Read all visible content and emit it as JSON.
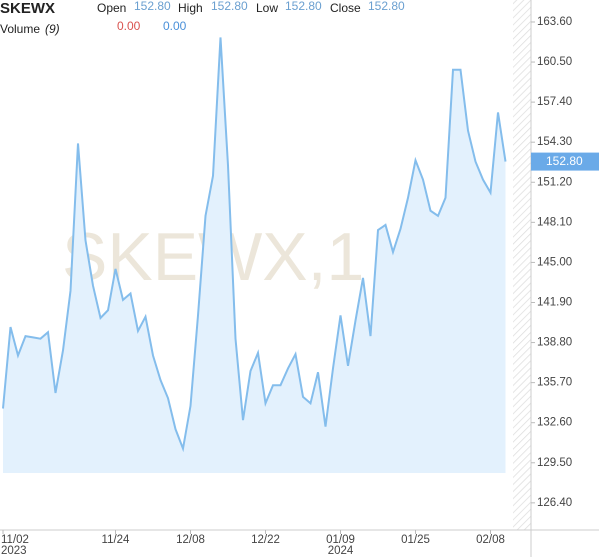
{
  "chart_data": {
    "type": "area",
    "header": {
      "symbol": "SKEWX",
      "open_label": "Open",
      "open": "152.80",
      "high_label": "High",
      "high": "152.80",
      "low_label": "Low",
      "low": "152.80",
      "close_label": "Close",
      "close": "152.80",
      "volume_label": "Volume",
      "volume_period": "(9)",
      "volume_values": [
        "0.00",
        "0.00"
      ]
    },
    "watermark": "SKEWX,1",
    "categories": [
      "11/02",
      null,
      null,
      null,
      null,
      null,
      null,
      null,
      null,
      null,
      null,
      null,
      null,
      null,
      null,
      "11/24",
      null,
      null,
      null,
      null,
      null,
      null,
      null,
      null,
      null,
      "12/08",
      null,
      null,
      null,
      null,
      null,
      null,
      null,
      null,
      null,
      "12/22",
      null,
      null,
      null,
      null,
      null,
      null,
      null,
      null,
      null,
      "01/09",
      null,
      null,
      null,
      null,
      null,
      null,
      null,
      null,
      null,
      "01/25",
      null,
      null,
      null,
      null,
      null,
      null,
      null,
      null,
      null,
      "02/08",
      null,
      null
    ],
    "year_labels": [
      {
        "category": "11/02",
        "label": "2023"
      },
      {
        "category": "01/09",
        "label": "2024"
      }
    ],
    "values": [
      133.7,
      140.0,
      137.8,
      139.3,
      139.2,
      139.1,
      139.6,
      134.9,
      138.2,
      142.8,
      154.2,
      146.7,
      143.2,
      140.7,
      141.3,
      144.5,
      142.1,
      142.6,
      139.7,
      140.8,
      137.8,
      135.9,
      134.5,
      132.1,
      130.6,
      133.9,
      140.9,
      148.6,
      151.7,
      162.4,
      152.5,
      139.1,
      132.8,
      136.6,
      138.0,
      134.1,
      135.5,
      135.5,
      136.8,
      137.9,
      134.6,
      134.1,
      136.5,
      132.3,
      136.8,
      140.9,
      137.0,
      140.5,
      143.8,
      139.3,
      147.5,
      147.9,
      145.8,
      147.6,
      150.0,
      152.9,
      151.4,
      149.0,
      148.6,
      150.0,
      159.9,
      159.9,
      155.2,
      152.8,
      151.4,
      150.4,
      156.6,
      152.8
    ],
    "color": "#84bdec",
    "fill": "#e3f1fd",
    "ylim": [
      124.3,
      165.3
    ],
    "yticks": [
      {
        "value": 163.6,
        "label": "163.60"
      },
      {
        "value": 160.5,
        "label": "160.50"
      },
      {
        "value": 157.4,
        "label": "157.40"
      },
      {
        "value": 154.3,
        "label": "154.30"
      },
      {
        "value": 151.2,
        "label": "151.20"
      },
      {
        "value": 148.1,
        "label": "148.10"
      },
      {
        "value": 145,
        "label": "145.00"
      },
      {
        "value": 141.9,
        "label": "141.90"
      },
      {
        "value": 138.8,
        "label": "138.80"
      },
      {
        "value": 135.7,
        "label": "135.70"
      },
      {
        "value": 132.6,
        "label": "132.60"
      },
      {
        "value": 129.5,
        "label": "129.50"
      },
      {
        "value": 126.4,
        "label": "126.40"
      }
    ]
  }
}
